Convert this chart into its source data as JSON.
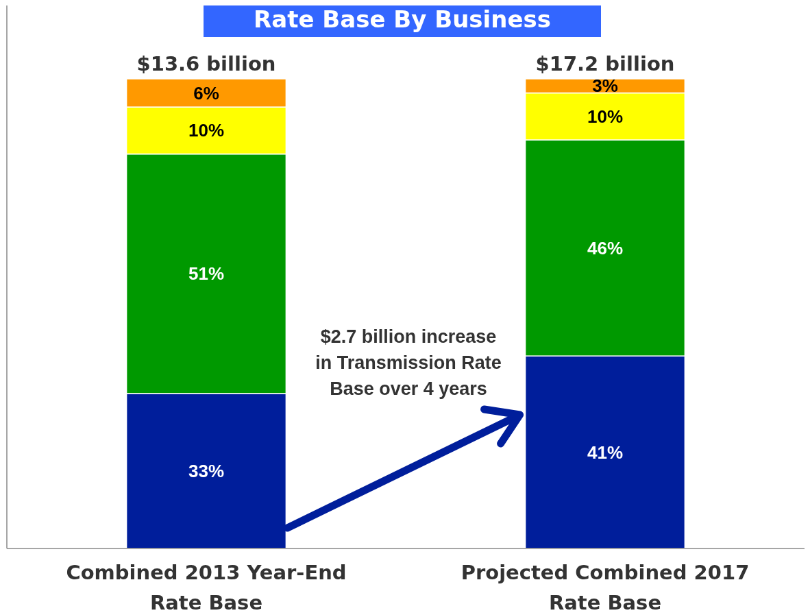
{
  "chart_data": {
    "type": "bar",
    "title": "Rate Base By Business",
    "stacked": true,
    "data_labels": true,
    "categories": [
      "Combined 2013 Year-End Rate Base",
      "Projected Combined 2017 Rate Base"
    ],
    "series": [
      {
        "color": "#001e9b",
        "values": [
          33,
          41
        ],
        "value_labels": [
          "33%",
          "41%"
        ]
      },
      {
        "color": "#009900",
        "values": [
          51,
          46
        ],
        "value_labels": [
          "51%",
          "46%"
        ]
      },
      {
        "color": "#ffff00",
        "values": [
          10,
          10
        ],
        "value_labels": [
          "10%",
          "10%"
        ]
      },
      {
        "color": "#ff9900",
        "values": [
          6,
          3
        ],
        "value_labels": [
          "6%",
          "3%"
        ]
      }
    ],
    "annotations": [
      {
        "text": "$13.6 billion",
        "x": "Combined 2013 Year-End Rate Base",
        "y": 100
      },
      {
        "text": "$17.2 billion",
        "x": "Projected Combined 2017 Rate Base",
        "y": 100
      },
      "$2.7 billion increase\nin Transmission Rate\nBase over 4 years"
    ]
  }
}
